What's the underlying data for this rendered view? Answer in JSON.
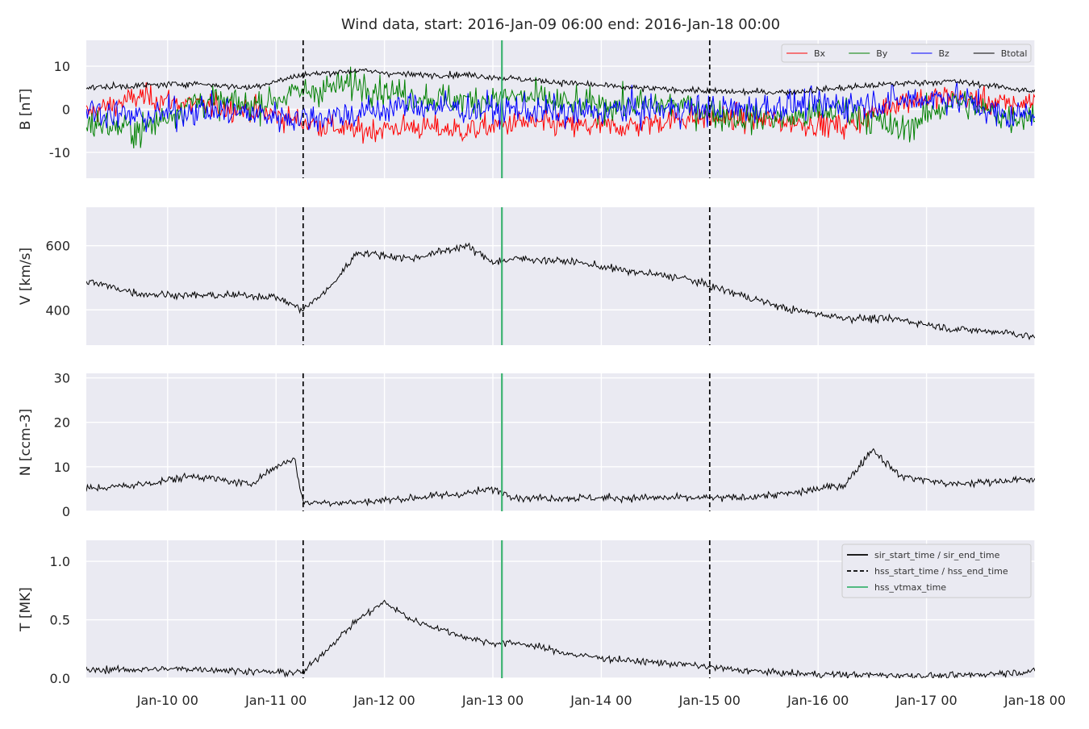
{
  "chart_data": {
    "type": "line",
    "title": "Wind data, start: 2016-Jan-09 06:00  end: 2016-Jan-18 00:00",
    "x_axis": {
      "unit": "hours",
      "range": [
        "2016-01-09 06:00",
        "2016-01-18 00:00"
      ],
      "tick_labels": [
        "Jan-10 00",
        "Jan-11 00",
        "Jan-12 00",
        "Jan-13 00",
        "Jan-14 00",
        "Jan-15 00",
        "Jan-16 00",
        "Jan-17 00",
        "Jan-18 00"
      ],
      "tick_times": [
        "2016-01-10 00:00",
        "2016-01-11 00:00",
        "2016-01-12 00:00",
        "2016-01-13 00:00",
        "2016-01-14 00:00",
        "2016-01-15 00:00",
        "2016-01-16 00:00",
        "2016-01-17 00:00",
        "2016-01-18 00:00"
      ]
    },
    "grid": true,
    "event_lines": [
      {
        "name": "hss_start_time / hss_end_time",
        "time": "2016-01-11 06:00",
        "style": "dashed",
        "color": "#000000"
      },
      {
        "name": "hss_vtmax_time",
        "time": "2016-01-13 02:00",
        "style": "solid",
        "color": "#3cb371"
      },
      {
        "name": "hss_start_time / hss_end_time",
        "time": "2016-01-15 00:00",
        "style": "dashed",
        "color": "#000000"
      }
    ],
    "panels": [
      {
        "id": "B",
        "ylabel": "B [nT]",
        "ylim": [
          -16,
          16
        ],
        "yticks": [
          -10,
          0,
          10
        ],
        "legend": {
          "position": "top-right",
          "entries": [
            "Bx",
            "By",
            "Bz",
            "Btotal"
          ]
        },
        "series": [
          {
            "name": "Bx",
            "color": "#ff0000",
            "noise": 2.0,
            "points": [
              [
                "2016-01-09 06:00",
                -1
              ],
              [
                "2016-01-09 18:00",
                3
              ],
              [
                "2016-01-10 06:00",
                1
              ],
              [
                "2016-01-10 18:00",
                0
              ],
              [
                "2016-01-11 06:00",
                -3
              ],
              [
                "2016-01-11 18:00",
                -5
              ],
              [
                "2016-01-12 06:00",
                -4
              ],
              [
                "2016-01-12 18:00",
                -5
              ],
              [
                "2016-01-13 06:00",
                -3
              ],
              [
                "2016-01-13 18:00",
                -4
              ],
              [
                "2016-01-14 06:00",
                -4
              ],
              [
                "2016-01-14 18:00",
                -2
              ],
              [
                "2016-01-15 06:00",
                -2
              ],
              [
                "2016-01-15 18:00",
                -3
              ],
              [
                "2016-01-16 06:00",
                -4
              ],
              [
                "2016-01-16 18:00",
                2
              ],
              [
                "2016-01-17 06:00",
                3
              ],
              [
                "2016-01-17 18:00",
                1
              ],
              [
                "2016-01-18 00:00",
                2
              ]
            ]
          },
          {
            "name": "By",
            "color": "#008000",
            "noise": 2.5,
            "points": [
              [
                "2016-01-09 06:00",
                -3
              ],
              [
                "2016-01-09 18:00",
                -5
              ],
              [
                "2016-01-10 06:00",
                2
              ],
              [
                "2016-01-10 18:00",
                1
              ],
              [
                "2016-01-11 06:00",
                4
              ],
              [
                "2016-01-11 18:00",
                6
              ],
              [
                "2016-01-12 06:00",
                3
              ],
              [
                "2016-01-12 18:00",
                2
              ],
              [
                "2016-01-13 06:00",
                3
              ],
              [
                "2016-01-13 18:00",
                1
              ],
              [
                "2016-01-14 06:00",
                1
              ],
              [
                "2016-01-14 18:00",
                1
              ],
              [
                "2016-01-15 06:00",
                -2
              ],
              [
                "2016-01-15 18:00",
                -2
              ],
              [
                "2016-01-16 06:00",
                0
              ],
              [
                "2016-01-16 18:00",
                -5
              ],
              [
                "2016-01-17 06:00",
                2
              ],
              [
                "2016-01-17 18:00",
                -2
              ],
              [
                "2016-01-18 00:00",
                -1
              ]
            ]
          },
          {
            "name": "Bz",
            "color": "#0000ff",
            "noise": 2.5,
            "points": [
              [
                "2016-01-09 06:00",
                0
              ],
              [
                "2016-01-09 18:00",
                -2
              ],
              [
                "2016-01-10 06:00",
                0
              ],
              [
                "2016-01-10 18:00",
                -1
              ],
              [
                "2016-01-11 06:00",
                -2
              ],
              [
                "2016-01-11 18:00",
                -1
              ],
              [
                "2016-01-12 06:00",
                1
              ],
              [
                "2016-01-12 18:00",
                0
              ],
              [
                "2016-01-13 06:00",
                0
              ],
              [
                "2016-01-13 18:00",
                -1
              ],
              [
                "2016-01-14 06:00",
                0
              ],
              [
                "2016-01-14 18:00",
                0
              ],
              [
                "2016-01-15 06:00",
                0
              ],
              [
                "2016-01-15 18:00",
                1
              ],
              [
                "2016-01-16 06:00",
                1
              ],
              [
                "2016-01-16 18:00",
                2
              ],
              [
                "2016-01-17 06:00",
                3
              ],
              [
                "2016-01-17 18:00",
                -2
              ],
              [
                "2016-01-18 00:00",
                0
              ]
            ]
          },
          {
            "name": "Btotal",
            "color": "#000000",
            "noise": 0.5,
            "points": [
              [
                "2016-01-09 06:00",
                5
              ],
              [
                "2016-01-09 18:00",
                5.5
              ],
              [
                "2016-01-10 06:00",
                6
              ],
              [
                "2016-01-10 18:00",
                5
              ],
              [
                "2016-01-11 06:00",
                8
              ],
              [
                "2016-01-11 18:00",
                9
              ],
              [
                "2016-01-12 06:00",
                8
              ],
              [
                "2016-01-12 18:00",
                8
              ],
              [
                "2016-01-13 06:00",
                7
              ],
              [
                "2016-01-13 18:00",
                6
              ],
              [
                "2016-01-14 06:00",
                5
              ],
              [
                "2016-01-14 18:00",
                4.5
              ],
              [
                "2016-01-15 06:00",
                4
              ],
              [
                "2016-01-15 18:00",
                4
              ],
              [
                "2016-01-16 06:00",
                5
              ],
              [
                "2016-01-16 18:00",
                6
              ],
              [
                "2016-01-17 06:00",
                6.5
              ],
              [
                "2016-01-17 18:00",
                5
              ],
              [
                "2016-01-18 00:00",
                4
              ]
            ]
          }
        ]
      },
      {
        "id": "V",
        "ylabel": "V [km/s]",
        "ylim": [
          290,
          720
        ],
        "yticks": [
          400,
          600
        ],
        "series": [
          {
            "name": "V",
            "color": "#000000",
            "noise": 8,
            "points": [
              [
                "2016-01-09 06:00",
                490
              ],
              [
                "2016-01-09 18:00",
                450
              ],
              [
                "2016-01-10 06:00",
                445
              ],
              [
                "2016-01-10 18:00",
                445
              ],
              [
                "2016-01-11 00:00",
                440
              ],
              [
                "2016-01-11 06:00",
                400
              ],
              [
                "2016-01-11 12:00",
                470
              ],
              [
                "2016-01-11 18:00",
                580
              ],
              [
                "2016-01-12 06:00",
                560
              ],
              [
                "2016-01-12 18:00",
                600
              ],
              [
                "2016-01-13 00:00",
                550
              ],
              [
                "2016-01-13 06:00",
                560
              ],
              [
                "2016-01-13 18:00",
                550
              ],
              [
                "2016-01-14 06:00",
                520
              ],
              [
                "2016-01-14 18:00",
                500
              ],
              [
                "2016-01-15 06:00",
                450
              ],
              [
                "2016-01-15 18:00",
                400
              ],
              [
                "2016-01-16 06:00",
                375
              ],
              [
                "2016-01-16 18:00",
                370
              ],
              [
                "2016-01-17 06:00",
                340
              ],
              [
                "2016-01-17 18:00",
                330
              ],
              [
                "2016-01-18 00:00",
                315
              ]
            ]
          }
        ]
      },
      {
        "id": "N",
        "ylabel": "N [ccm-3]",
        "ylim": [
          0,
          31
        ],
        "yticks": [
          0,
          10,
          20,
          30
        ],
        "series": [
          {
            "name": "N",
            "color": "#000000",
            "noise": 0.6,
            "points": [
              [
                "2016-01-09 06:00",
                5
              ],
              [
                "2016-01-09 18:00",
                6
              ],
              [
                "2016-01-10 06:00",
                8
              ],
              [
                "2016-01-10 18:00",
                6
              ],
              [
                "2016-01-11 00:00",
                10
              ],
              [
                "2016-01-11 04:00",
                12
              ],
              [
                "2016-01-11 06:00",
                2
              ],
              [
                "2016-01-11 18:00",
                2
              ],
              [
                "2016-01-12 06:00",
                3
              ],
              [
                "2016-01-12 18:00",
                4
              ],
              [
                "2016-01-13 00:00",
                5
              ],
              [
                "2016-01-13 06:00",
                3
              ],
              [
                "2016-01-13 18:00",
                3
              ],
              [
                "2016-01-14 06:00",
                3
              ],
              [
                "2016-01-14 18:00",
                3
              ],
              [
                "2016-01-15 06:00",
                3
              ],
              [
                "2016-01-15 18:00",
                4
              ],
              [
                "2016-01-16 06:00",
                6
              ],
              [
                "2016-01-16 12:00",
                14
              ],
              [
                "2016-01-16 18:00",
                8
              ],
              [
                "2016-01-17 06:00",
                6
              ],
              [
                "2016-01-17 18:00",
                7
              ],
              [
                "2016-01-18 00:00",
                7
              ]
            ]
          }
        ]
      },
      {
        "id": "T",
        "ylabel": "T [MK]",
        "ylim": [
          0,
          1.18
        ],
        "yticks": [
          0.0,
          0.5,
          1.0
        ],
        "tick_labels": [
          "0.0",
          "0.5",
          "1.0"
        ],
        "legend": {
          "position": "top-right",
          "entries": [
            "sir_start_time / sir_end_time",
            "hss_start_time / hss_end_time",
            "hss_vtmax_time"
          ]
        },
        "series": [
          {
            "name": "T",
            "color": "#000000",
            "noise": 0.02,
            "points": [
              [
                "2016-01-09 06:00",
                0.07
              ],
              [
                "2016-01-10 06:00",
                0.08
              ],
              [
                "2016-01-11 00:00",
                0.05
              ],
              [
                "2016-01-11 06:00",
                0.05
              ],
              [
                "2016-01-11 18:00",
                0.5
              ],
              [
                "2016-01-12 00:00",
                0.65
              ],
              [
                "2016-01-12 06:00",
                0.5
              ],
              [
                "2016-01-12 18:00",
                0.35
              ],
              [
                "2016-01-13 00:00",
                0.3
              ],
              [
                "2016-01-13 06:00",
                0.3
              ],
              [
                "2016-01-13 18:00",
                0.2
              ],
              [
                "2016-01-14 06:00",
                0.15
              ],
              [
                "2016-01-14 18:00",
                0.12
              ],
              [
                "2016-01-15 06:00",
                0.07
              ],
              [
                "2016-01-15 18:00",
                0.04
              ],
              [
                "2016-01-16 06:00",
                0.03
              ],
              [
                "2016-01-17 06:00",
                0.02
              ],
              [
                "2016-01-18 00:00",
                0.06
              ]
            ]
          }
        ]
      }
    ],
    "legend_styles": {
      "Bx": {
        "color": "#ff0000",
        "dash": "solid"
      },
      "By": {
        "color": "#008000",
        "dash": "solid"
      },
      "Bz": {
        "color": "#0000ff",
        "dash": "solid"
      },
      "Btotal": {
        "color": "#000000",
        "dash": "solid"
      },
      "sir_start_time / sir_end_time": {
        "color": "#000000",
        "dash": "solid"
      },
      "hss_start_time / hss_end_time": {
        "color": "#000000",
        "dash": "dashed"
      },
      "hss_vtmax_time": {
        "color": "#3cb371",
        "dash": "solid"
      }
    },
    "colors": {
      "plot_background": "#eaeaf2",
      "grid": "#ffffff"
    }
  }
}
